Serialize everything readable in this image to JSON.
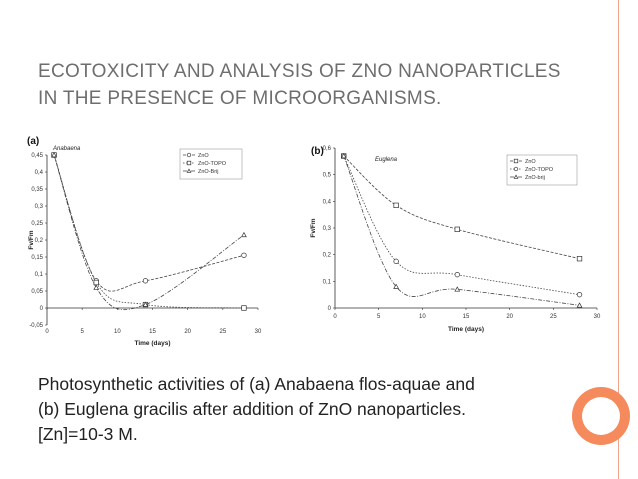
{
  "slide": {
    "title_line1": "ECOTOXICITY AND ANALYSIS OF ZNO NANOPARTICLES",
    "title_line2": "IN THE PRESENCE OF MICROORGANISMS.",
    "caption_lines": [
      "Photosynthetic activities of (a) Anabaena flos-aquae and",
      "(b) Euglena gracilis after addition of ZnO nanoparticles.",
      "[Zn]=10-3 M."
    ],
    "colors": {
      "accent_orange": "#f58a5c",
      "accent_line": "#f3a28a",
      "title_gray": "#6e6e6e"
    }
  },
  "chart_data": [
    {
      "panel": "(a)",
      "organism": "Anabaena",
      "type": "line",
      "xlabel": "Time (days)",
      "ylabel": "Fv/Fm",
      "xlim": [
        0,
        30
      ],
      "ylim": [
        -0.05,
        0.45
      ],
      "xticks": [
        0,
        5,
        10,
        15,
        20,
        25,
        30
      ],
      "yticks": [
        -0.05,
        0,
        0.05,
        0.1,
        0.15,
        0.2,
        0.25,
        0.3,
        0.35,
        0.4,
        0.45
      ],
      "ytick_labels": [
        "-0,05",
        "0",
        "0,05",
        "0,1",
        "0,15",
        "0,2",
        "0,25",
        "0,3",
        "0,35",
        "0,4",
        "0,45"
      ],
      "legend_position": "top-right",
      "series": [
        {
          "name": "ZnO",
          "marker": "circle",
          "x": [
            1,
            7,
            14,
            28
          ],
          "y": [
            0.45,
            0.08,
            0.08,
            0.155
          ]
        },
        {
          "name": "ZnO-TOPO",
          "marker": "square",
          "x": [
            1,
            7,
            14,
            28
          ],
          "y": [
            0.45,
            0.075,
            0.01,
            0.0
          ]
        },
        {
          "name": "ZnO-Brij",
          "marker": "triangle",
          "x": [
            1,
            7,
            14,
            28
          ],
          "y": [
            0.45,
            0.06,
            0.01,
            0.215
          ]
        }
      ]
    },
    {
      "panel": "(b)",
      "organism": "Euglena",
      "type": "line",
      "xlabel": "Time (days)",
      "ylabel": "Fv/Fm",
      "xlim": [
        0,
        30
      ],
      "ylim": [
        0,
        0.6
      ],
      "xticks": [
        0,
        5,
        10,
        15,
        20,
        25,
        30
      ],
      "yticks": [
        0,
        0.1,
        0.2,
        0.3,
        0.4,
        0.5,
        0.6
      ],
      "ytick_labels": [
        "0",
        "0,1",
        "0,2",
        "0,3",
        "0,4",
        "0,5",
        "0,6"
      ],
      "legend_position": "top-right",
      "series": [
        {
          "name": "ZnO",
          "marker": "square",
          "x": [
            1,
            7,
            14,
            28
          ],
          "y": [
            0.57,
            0.385,
            0.295,
            0.185
          ]
        },
        {
          "name": "ZnO-TOPO",
          "marker": "circle",
          "x": [
            1,
            7,
            14,
            28
          ],
          "y": [
            0.57,
            0.175,
            0.125,
            0.05
          ]
        },
        {
          "name": "ZnO-brij",
          "marker": "triangle",
          "x": [
            1,
            7,
            14,
            28
          ],
          "y": [
            0.57,
            0.08,
            0.07,
            0.01
          ]
        }
      ]
    }
  ]
}
